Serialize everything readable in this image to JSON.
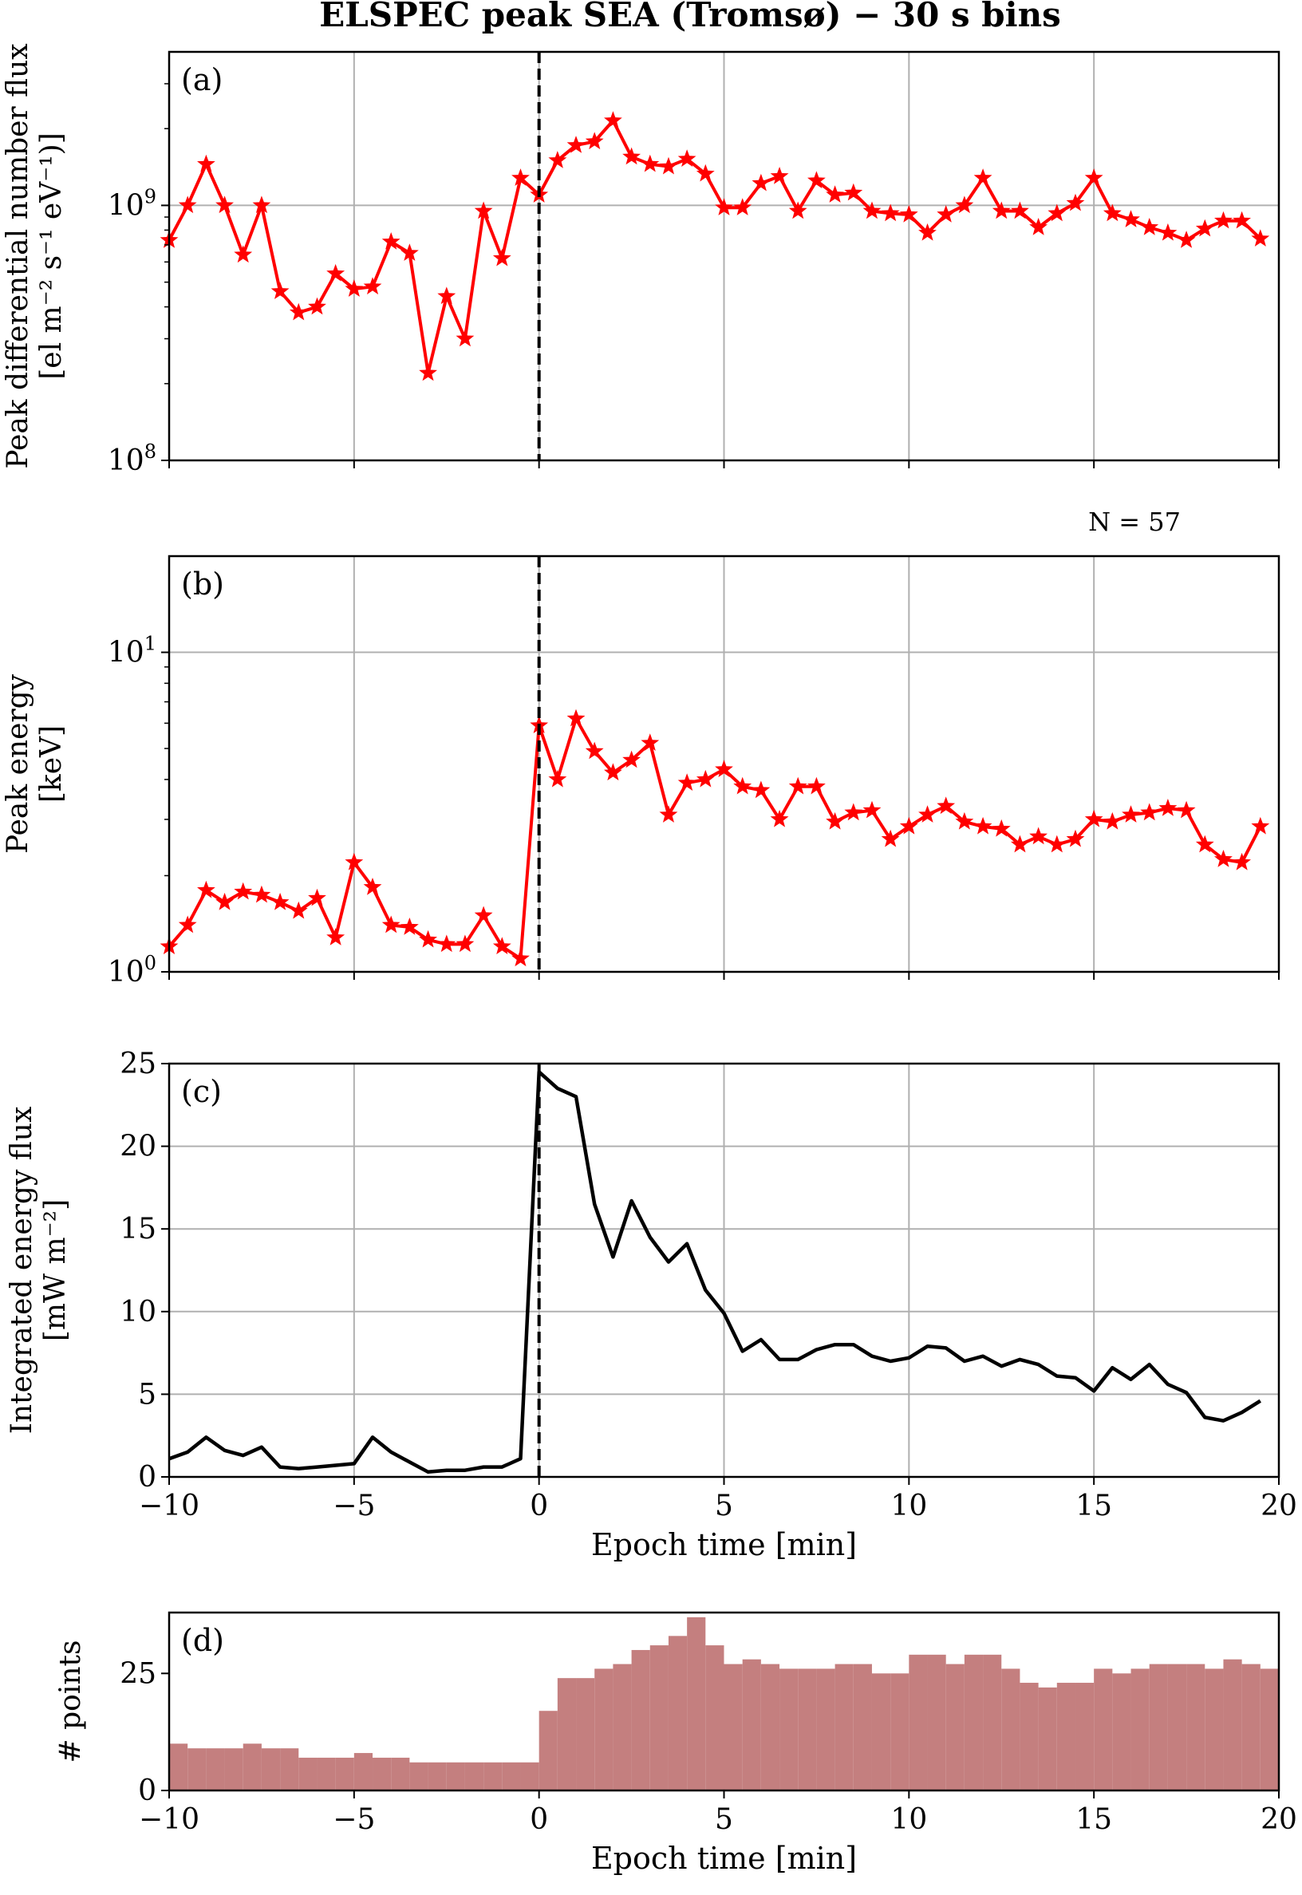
{
  "figure": {
    "title": "ELSPEC peak SEA (Tromsø) − 30 s bins",
    "n_label": "N = 57"
  },
  "chart_data": [
    {
      "panel": "(a)",
      "type": "line",
      "marker": "star",
      "color": "#ff0000",
      "ylabel": [
        "Peak differential number flux",
        "[el m⁻² s⁻¹ eV⁻¹)]"
      ],
      "yscale": "log",
      "ylim": [
        100000000.0,
        4000000000.0
      ],
      "yticks": [
        {
          "value": 100000000.0,
          "base": "10",
          "exp": "8"
        },
        {
          "value": 1000000000.0,
          "base": "10",
          "exp": "9"
        }
      ],
      "xlim": [
        -10,
        20
      ],
      "xticks": [
        -10,
        -5,
        0,
        5,
        10,
        15,
        20
      ],
      "show_xticklabels": false,
      "grid": true,
      "epoch_line": 0,
      "series": [
        {
          "x": [
            -10,
            -9.5,
            -9,
            -8.5,
            -8,
            -7.5,
            -7,
            -6.5,
            -6,
            -5.5,
            -5,
            -4.5,
            -4,
            -3.5,
            -3,
            -2.5,
            -2,
            -1.5,
            -1,
            -0.5,
            0,
            0.5,
            1,
            1.5,
            2,
            2.5,
            3,
            3.5,
            4,
            4.5,
            5,
            5.5,
            6,
            6.5,
            7,
            7.5,
            8,
            8.5,
            9,
            9.5,
            10,
            10.5,
            11,
            11.5,
            12,
            12.5,
            13,
            13.5,
            14,
            14.5,
            15,
            15.5,
            16,
            16.5,
            17,
            17.5,
            18,
            18.5,
            19,
            19.5
          ],
          "values": [
            730000000.0,
            1000000000.0,
            1450000000.0,
            1000000000.0,
            640000000.0,
            1000000000.0,
            460000000.0,
            380000000.0,
            400000000.0,
            540000000.0,
            470000000.0,
            480000000.0,
            720000000.0,
            650000000.0,
            220000000.0,
            440000000.0,
            300000000.0,
            950000000.0,
            620000000.0,
            1280000000.0,
            1100000000.0,
            1500000000.0,
            1720000000.0,
            1780000000.0,
            2150000000.0,
            1550000000.0,
            1450000000.0,
            1420000000.0,
            1520000000.0,
            1330000000.0,
            980000000.0,
            980000000.0,
            1220000000.0,
            1300000000.0,
            950000000.0,
            1250000000.0,
            1100000000.0,
            1120000000.0,
            950000000.0,
            930000000.0,
            920000000.0,
            780000000.0,
            920000000.0,
            1000000000.0,
            1280000000.0,
            950000000.0,
            950000000.0,
            820000000.0,
            930000000.0,
            1020000000.0,
            1280000000.0,
            930000000.0,
            880000000.0,
            820000000.0,
            780000000.0,
            730000000.0,
            810000000.0,
            870000000.0,
            870000000.0,
            740000000.0
          ]
        }
      ]
    },
    {
      "panel": "(b)",
      "type": "line",
      "marker": "star",
      "color": "#ff0000",
      "ylabel": [
        "Peak energy",
        "[keV]"
      ],
      "yscale": "log",
      "ylim": [
        1,
        20
      ],
      "yticks": [
        {
          "value": 1,
          "base": "10",
          "exp": "0"
        },
        {
          "value": 10,
          "base": "10",
          "exp": "1"
        }
      ],
      "xlim": [
        -10,
        20
      ],
      "xticks": [
        -10,
        -5,
        0,
        5,
        10,
        15,
        20
      ],
      "show_xticklabels": false,
      "grid": true,
      "epoch_line": 0,
      "series": [
        {
          "x": [
            -10,
            -9.5,
            -9,
            -8.5,
            -8,
            -7.5,
            -7,
            -6.5,
            -6,
            -5.5,
            -5,
            -4.5,
            -4,
            -3.5,
            -3,
            -2.5,
            -2,
            -1.5,
            -1,
            -0.5,
            0,
            0.5,
            1,
            1.5,
            2,
            2.5,
            3,
            3.5,
            4,
            4.5,
            5,
            5.5,
            6,
            6.5,
            7,
            7.5,
            8,
            8.5,
            9,
            9.5,
            10,
            10.5,
            11,
            11.5,
            12,
            12.5,
            13,
            13.5,
            14,
            14.5,
            15,
            15.5,
            16,
            16.5,
            17,
            17.5,
            18,
            18.5,
            19,
            19.5
          ],
          "values": [
            1.2,
            1.4,
            1.8,
            1.65,
            1.78,
            1.74,
            1.65,
            1.55,
            1.7,
            1.28,
            2.2,
            1.84,
            1.4,
            1.38,
            1.26,
            1.22,
            1.22,
            1.5,
            1.2,
            1.1,
            5.9,
            4.0,
            6.2,
            4.9,
            4.2,
            4.6,
            5.2,
            3.1,
            3.9,
            4.0,
            4.3,
            3.8,
            3.7,
            3.0,
            3.8,
            3.8,
            2.95,
            3.15,
            3.2,
            2.6,
            2.85,
            3.1,
            3.3,
            2.95,
            2.85,
            2.8,
            2.5,
            2.65,
            2.5,
            2.6,
            3.0,
            2.95,
            3.1,
            3.15,
            3.25,
            3.2,
            2.5,
            2.25,
            2.2,
            2.85
          ]
        }
      ]
    },
    {
      "panel": "(c)",
      "type": "line",
      "color": "#000000",
      "ylabel": [
        "Integrated energy flux",
        "[mW m⁻²]"
      ],
      "ylim": [
        0,
        25
      ],
      "yticks": [
        0,
        5,
        10,
        15,
        20,
        25
      ],
      "xlim": [
        -10,
        20
      ],
      "xticks": [
        -10,
        -5,
        0,
        5,
        10,
        15,
        20
      ],
      "xticklabels": [
        "−10",
        "−5",
        "0",
        "5",
        "10",
        "15",
        "20"
      ],
      "xlabel": "Epoch time [min]",
      "grid": true,
      "epoch_line": 0,
      "series": [
        {
          "x": [
            -10,
            -9.5,
            -9,
            -8.5,
            -8,
            -7.5,
            -7,
            -6.5,
            -6,
            -5.5,
            -5,
            -4.5,
            -4,
            -3.5,
            -3,
            -2.5,
            -2,
            -1.5,
            -1,
            -0.5,
            0,
            0.5,
            1,
            1.5,
            2,
            2.5,
            3,
            3.5,
            4,
            4.5,
            5,
            5.5,
            6,
            6.5,
            7,
            7.5,
            8,
            8.5,
            9,
            9.5,
            10,
            10.5,
            11,
            11.5,
            12,
            12.5,
            13,
            13.5,
            14,
            14.5,
            15,
            15.5,
            16,
            16.5,
            17,
            17.5,
            18,
            18.5,
            19,
            19.5
          ],
          "values": [
            1.1,
            1.5,
            2.4,
            1.6,
            1.3,
            1.8,
            0.6,
            0.5,
            0.6,
            0.7,
            0.8,
            2.4,
            1.5,
            0.9,
            0.3,
            0.4,
            0.4,
            0.6,
            0.6,
            1.1,
            24.5,
            23.5,
            23.0,
            16.5,
            13.3,
            16.7,
            14.5,
            13.0,
            14.1,
            11.3,
            9.9,
            7.6,
            8.3,
            7.1,
            7.1,
            7.7,
            8.0,
            8.0,
            7.3,
            7.0,
            7.2,
            7.9,
            7.8,
            7.0,
            7.3,
            6.7,
            7.1,
            6.8,
            6.1,
            6.0,
            5.2,
            6.6,
            5.9,
            6.8,
            5.6,
            5.1,
            3.6,
            3.4,
            3.9,
            4.6
          ]
        }
      ]
    },
    {
      "panel": "(d)",
      "type": "bar",
      "color": "#c47f7f",
      "ylabel": [
        "# points"
      ],
      "ylim": [
        0,
        38
      ],
      "yticks": [
        0,
        25
      ],
      "xlim": [
        -10,
        20
      ],
      "xticks": [
        -10,
        -5,
        0,
        5,
        10,
        15,
        20
      ],
      "xticklabels": [
        "−10",
        "−5",
        "0",
        "5",
        "10",
        "15",
        "20"
      ],
      "xlabel": "Epoch time [min]",
      "grid": false,
      "bin_width": 0.5,
      "series": [
        {
          "x": [
            -10,
            -9.5,
            -9,
            -8.5,
            -8,
            -7.5,
            -7,
            -6.5,
            -6,
            -5.5,
            -5,
            -4.5,
            -4,
            -3.5,
            -3,
            -2.5,
            -2,
            -1.5,
            -1,
            -0.5,
            0,
            0.5,
            1,
            1.5,
            2,
            2.5,
            3,
            3.5,
            4,
            4.5,
            5,
            5.5,
            6,
            6.5,
            7,
            7.5,
            8,
            8.5,
            9,
            9.5,
            10,
            10.5,
            11,
            11.5,
            12,
            12.5,
            13,
            13.5,
            14,
            14.5,
            15,
            15.5,
            16,
            16.5,
            17,
            17.5,
            18,
            18.5,
            19,
            19.5
          ],
          "values": [
            10,
            9,
            9,
            9,
            10,
            9,
            9,
            7,
            7,
            7,
            8,
            7,
            7,
            6,
            6,
            6,
            6,
            6,
            6,
            6,
            17,
            24,
            24,
            26,
            27,
            30,
            31,
            33,
            37,
            31,
            27,
            28,
            27,
            26,
            26,
            26,
            27,
            27,
            25,
            25,
            29,
            29,
            27,
            29,
            29,
            26,
            23,
            22,
            23,
            23,
            26,
            25,
            26,
            27,
            27,
            27,
            26,
            28,
            27,
            26
          ]
        }
      ]
    }
  ]
}
